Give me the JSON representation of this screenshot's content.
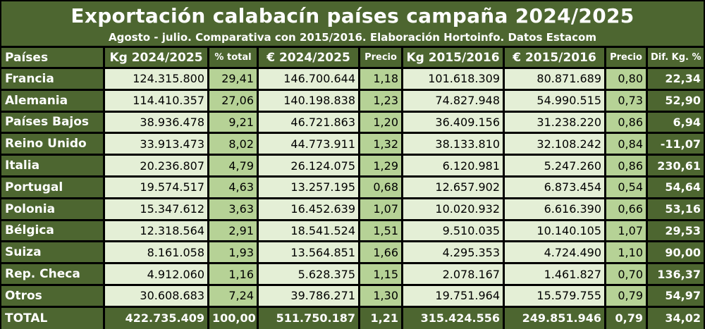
{
  "header": {
    "title": "Exportación calabacín países campaña 2024/2025",
    "subtitle": "Agosto - julio. Comparativa con 2015/2016. Elaboración Hortoinfo. Datos Estacom"
  },
  "columns": [
    "Países",
    "Kg 2024/2025",
    "% total",
    "€ 2024/2025",
    "Precio",
    "Kg 2015/2016",
    "€ 2015/2016",
    "Precio",
    "Dif. Kg. %"
  ],
  "rows": [
    [
      "Francia",
      "124.315.800",
      "29,41",
      "146.700.644",
      "1,18",
      "101.618.309",
      "80.871.689",
      "0,80",
      "22,34"
    ],
    [
      "Alemania",
      "114.410.357",
      "27,06",
      "140.198.838",
      "1,23",
      "74.827.948",
      "54.990.515",
      "0,73",
      "52,90"
    ],
    [
      "Países Bajos",
      "38.936.478",
      "9,21",
      "46.721.863",
      "1,20",
      "36.409.156",
      "31.238.220",
      "0,86",
      "6,94"
    ],
    [
      "Reino Unido",
      "33.913.473",
      "8,02",
      "44.773.911",
      "1,32",
      "38.133.810",
      "32.108.242",
      "0,84",
      "-11,07"
    ],
    [
      "Italia",
      "20.236.807",
      "4,79",
      "26.124.075",
      "1,29",
      "6.120.981",
      "5.247.260",
      "0,86",
      "230,61"
    ],
    [
      "Portugal",
      "19.574.517",
      "4,63",
      "13.257.195",
      "0,68",
      "12.657.902",
      "6.873.454",
      "0,54",
      "54,64"
    ],
    [
      "Polonia",
      "15.347.612",
      "3,63",
      "16.452.639",
      "1,07",
      "10.020.932",
      "6.616.390",
      "0,66",
      "53,16"
    ],
    [
      "Bélgica",
      "12.318.564",
      "2,91",
      "18.541.524",
      "1,51",
      "9.510.035",
      "10.140.105",
      "1,07",
      "29,53"
    ],
    [
      "Suiza",
      "8.161.058",
      "1,93",
      "13.564.851",
      "1,66",
      "4.295.353",
      "4.724.490",
      "1,10",
      "90,00"
    ],
    [
      "Rep. Checa",
      "4.912.060",
      "1,16",
      "5.628.375",
      "1,15",
      "2.078.167",
      "1.461.827",
      "0,70",
      "136,37"
    ],
    [
      "Otros",
      "30.608.683",
      "7,24",
      "39.786.271",
      "1,30",
      "19.751.964",
      "15.579.755",
      "0,79",
      "54,97"
    ]
  ],
  "total": [
    "TOTAL",
    "422.735.409",
    "100,00",
    "511.750.187",
    "1,21",
    "315.424.556",
    "249.851.946",
    "0,79",
    "34,02"
  ],
  "colors": {
    "header_green": "#4d6630",
    "light_cell": "#e4efd6",
    "mid_cell": "#b6d296",
    "grid_lines": "#000000"
  }
}
